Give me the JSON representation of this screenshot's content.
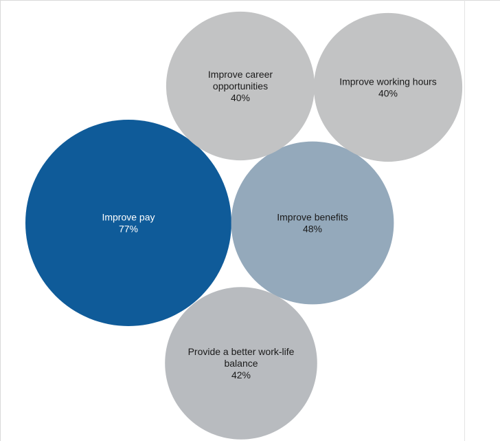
{
  "chart_data": {
    "type": "bubble",
    "title": "",
    "bubbles": [
      {
        "label_lines": [
          "Improve pay"
        ],
        "value": 77,
        "value_text": "77%",
        "color": "#0f5b99",
        "text_color": "#ffffff"
      },
      {
        "label_lines": [
          "Improve benefits"
        ],
        "value": 48,
        "value_text": "48%",
        "color": "#94a9bb",
        "text_color": "#1a1a1a"
      },
      {
        "label_lines": [
          "Provide a better work-life",
          "balance"
        ],
        "value": 42,
        "value_text": "42%",
        "color": "#b8bbbf",
        "text_color": "#1a1a1a"
      },
      {
        "label_lines": [
          "Improve career",
          "opportunities"
        ],
        "value": 40,
        "value_text": "40%",
        "color": "#c2c3c4",
        "text_color": "#1a1a1a"
      },
      {
        "label_lines": [
          "Improve working hours"
        ],
        "value": 40,
        "value_text": "40%",
        "color": "#c2c3c4",
        "text_color": "#1a1a1a"
      }
    ]
  }
}
